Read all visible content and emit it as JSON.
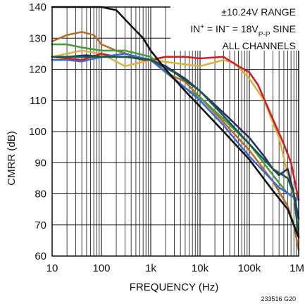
{
  "chart_data": {
    "type": "line",
    "xscale": "log",
    "xlim": [
      10,
      1000000
    ],
    "ylim": [
      60,
      140
    ],
    "xlabel": "FREQUENCY (Hz)",
    "ylabel": "CMRR (dB)",
    "x_ticks": [
      {
        "value": 10,
        "label": "10"
      },
      {
        "value": 100,
        "label": "100"
      },
      {
        "value": 1000,
        "label": "1k"
      },
      {
        "value": 10000,
        "label": "10k"
      },
      {
        "value": 100000,
        "label": "100k"
      },
      {
        "value": 1000000,
        "label": "1M"
      }
    ],
    "y_ticks": [
      60,
      70,
      80,
      90,
      100,
      110,
      120,
      130,
      140
    ],
    "grid": true,
    "annotation": {
      "line1": "±10.24V RANGE",
      "line2_a": "IN",
      "line2_b": "+",
      "line2_c": " = IN",
      "line2_d": "−",
      "line2_e": " = 18V",
      "line2_f": "P-P",
      "line2_g": " SINE",
      "line3": "ALL CHANNELS"
    },
    "figure_id": "233516 G20",
    "series": [
      {
        "color": "#d9b341",
        "points": [
          [
            10,
            124
          ],
          [
            20,
            125
          ],
          [
            40,
            126
          ],
          [
            100,
            125
          ],
          [
            300,
            121
          ],
          [
            1000,
            123
          ],
          [
            3000,
            122
          ],
          [
            10000,
            121
          ],
          [
            30000,
            123
          ],
          [
            50000,
            122
          ],
          [
            100000,
            117
          ],
          [
            200000,
            110
          ],
          [
            400000,
            98
          ],
          [
            700000,
            82
          ],
          [
            1000000,
            72
          ]
        ]
      },
      {
        "color": "#d21f26",
        "points": [
          [
            10,
            124
          ],
          [
            20,
            123.5
          ],
          [
            40,
            123
          ],
          [
            100,
            125
          ],
          [
            200,
            124
          ],
          [
            400,
            124
          ],
          [
            700,
            123
          ],
          [
            1000,
            123
          ],
          [
            2000,
            124
          ],
          [
            5000,
            124
          ],
          [
            10000,
            123.5
          ],
          [
            30000,
            124
          ],
          [
            60000,
            121
          ],
          [
            100000,
            119
          ],
          [
            150000,
            115
          ],
          [
            300000,
            104
          ],
          [
            500000,
            96
          ],
          [
            700000,
            90
          ],
          [
            1000000,
            78
          ]
        ]
      },
      {
        "color": "#b86d2a",
        "points": [
          [
            10,
            129
          ],
          [
            20,
            131
          ],
          [
            40,
            132
          ],
          [
            70,
            131
          ],
          [
            100,
            128
          ],
          [
            200,
            126
          ],
          [
            500,
            124
          ],
          [
            1000,
            123
          ],
          [
            2000,
            119
          ],
          [
            5000,
            116
          ],
          [
            10000,
            111
          ],
          [
            30000,
            103
          ],
          [
            100000,
            94
          ],
          [
            300000,
            84
          ],
          [
            600000,
            76
          ],
          [
            800000,
            70
          ],
          [
            1000000,
            62
          ]
        ]
      },
      {
        "color": "#4a9a3f",
        "points": [
          [
            10,
            128
          ],
          [
            20,
            128
          ],
          [
            40,
            127
          ],
          [
            100,
            126
          ],
          [
            300,
            126
          ],
          [
            1000,
            124
          ],
          [
            2000,
            119
          ],
          [
            5000,
            114
          ],
          [
            10000,
            111
          ],
          [
            30000,
            104
          ],
          [
            100000,
            96
          ],
          [
            300000,
            86
          ],
          [
            600000,
            80
          ],
          [
            1000000,
            78
          ]
        ]
      },
      {
        "color": "#3f6bd2",
        "points": [
          [
            10,
            123
          ],
          [
            20,
            123
          ],
          [
            40,
            122.5
          ],
          [
            100,
            124
          ],
          [
            300,
            125
          ],
          [
            1000,
            123
          ],
          [
            3000,
            117
          ],
          [
            10000,
            110
          ],
          [
            30000,
            102
          ],
          [
            100000,
            92
          ],
          [
            200000,
            87
          ],
          [
            400000,
            82
          ],
          [
            1000000,
            78
          ]
        ]
      },
      {
        "color": "#2e2a6e",
        "points": [
          [
            10,
            124
          ],
          [
            20,
            124
          ],
          [
            50,
            124.5
          ],
          [
            100,
            124
          ],
          [
            300,
            124
          ],
          [
            1000,
            123
          ],
          [
            2000,
            121
          ],
          [
            5000,
            117
          ],
          [
            10000,
            113
          ],
          [
            30000,
            106
          ],
          [
            100000,
            98
          ],
          [
            200000,
            92
          ],
          [
            300000,
            88
          ],
          [
            400000,
            86
          ],
          [
            600000,
            88
          ],
          [
            800000,
            80
          ],
          [
            1000000,
            72
          ]
        ]
      },
      {
        "color": "#155e46",
        "points": [
          [
            10,
            124
          ],
          [
            30,
            124
          ],
          [
            100,
            124
          ],
          [
            300,
            124
          ],
          [
            1000,
            123
          ],
          [
            3000,
            119
          ],
          [
            10000,
            113
          ],
          [
            30000,
            105
          ],
          [
            100000,
            96
          ],
          [
            300000,
            88
          ],
          [
            600000,
            85
          ],
          [
            800000,
            80
          ],
          [
            1000000,
            66
          ]
        ]
      },
      {
        "color": "#111111",
        "points": [
          [
            10,
            140
          ],
          [
            100,
            140
          ],
          [
            200,
            139
          ],
          [
            400,
            134
          ],
          [
            700,
            130
          ],
          [
            1000,
            126
          ],
          [
            2000,
            120
          ],
          [
            5000,
            113
          ],
          [
            10000,
            108
          ],
          [
            30000,
            100
          ],
          [
            100000,
            91
          ],
          [
            300000,
            81
          ],
          [
            600000,
            75
          ],
          [
            1000000,
            66
          ]
        ]
      }
    ]
  }
}
